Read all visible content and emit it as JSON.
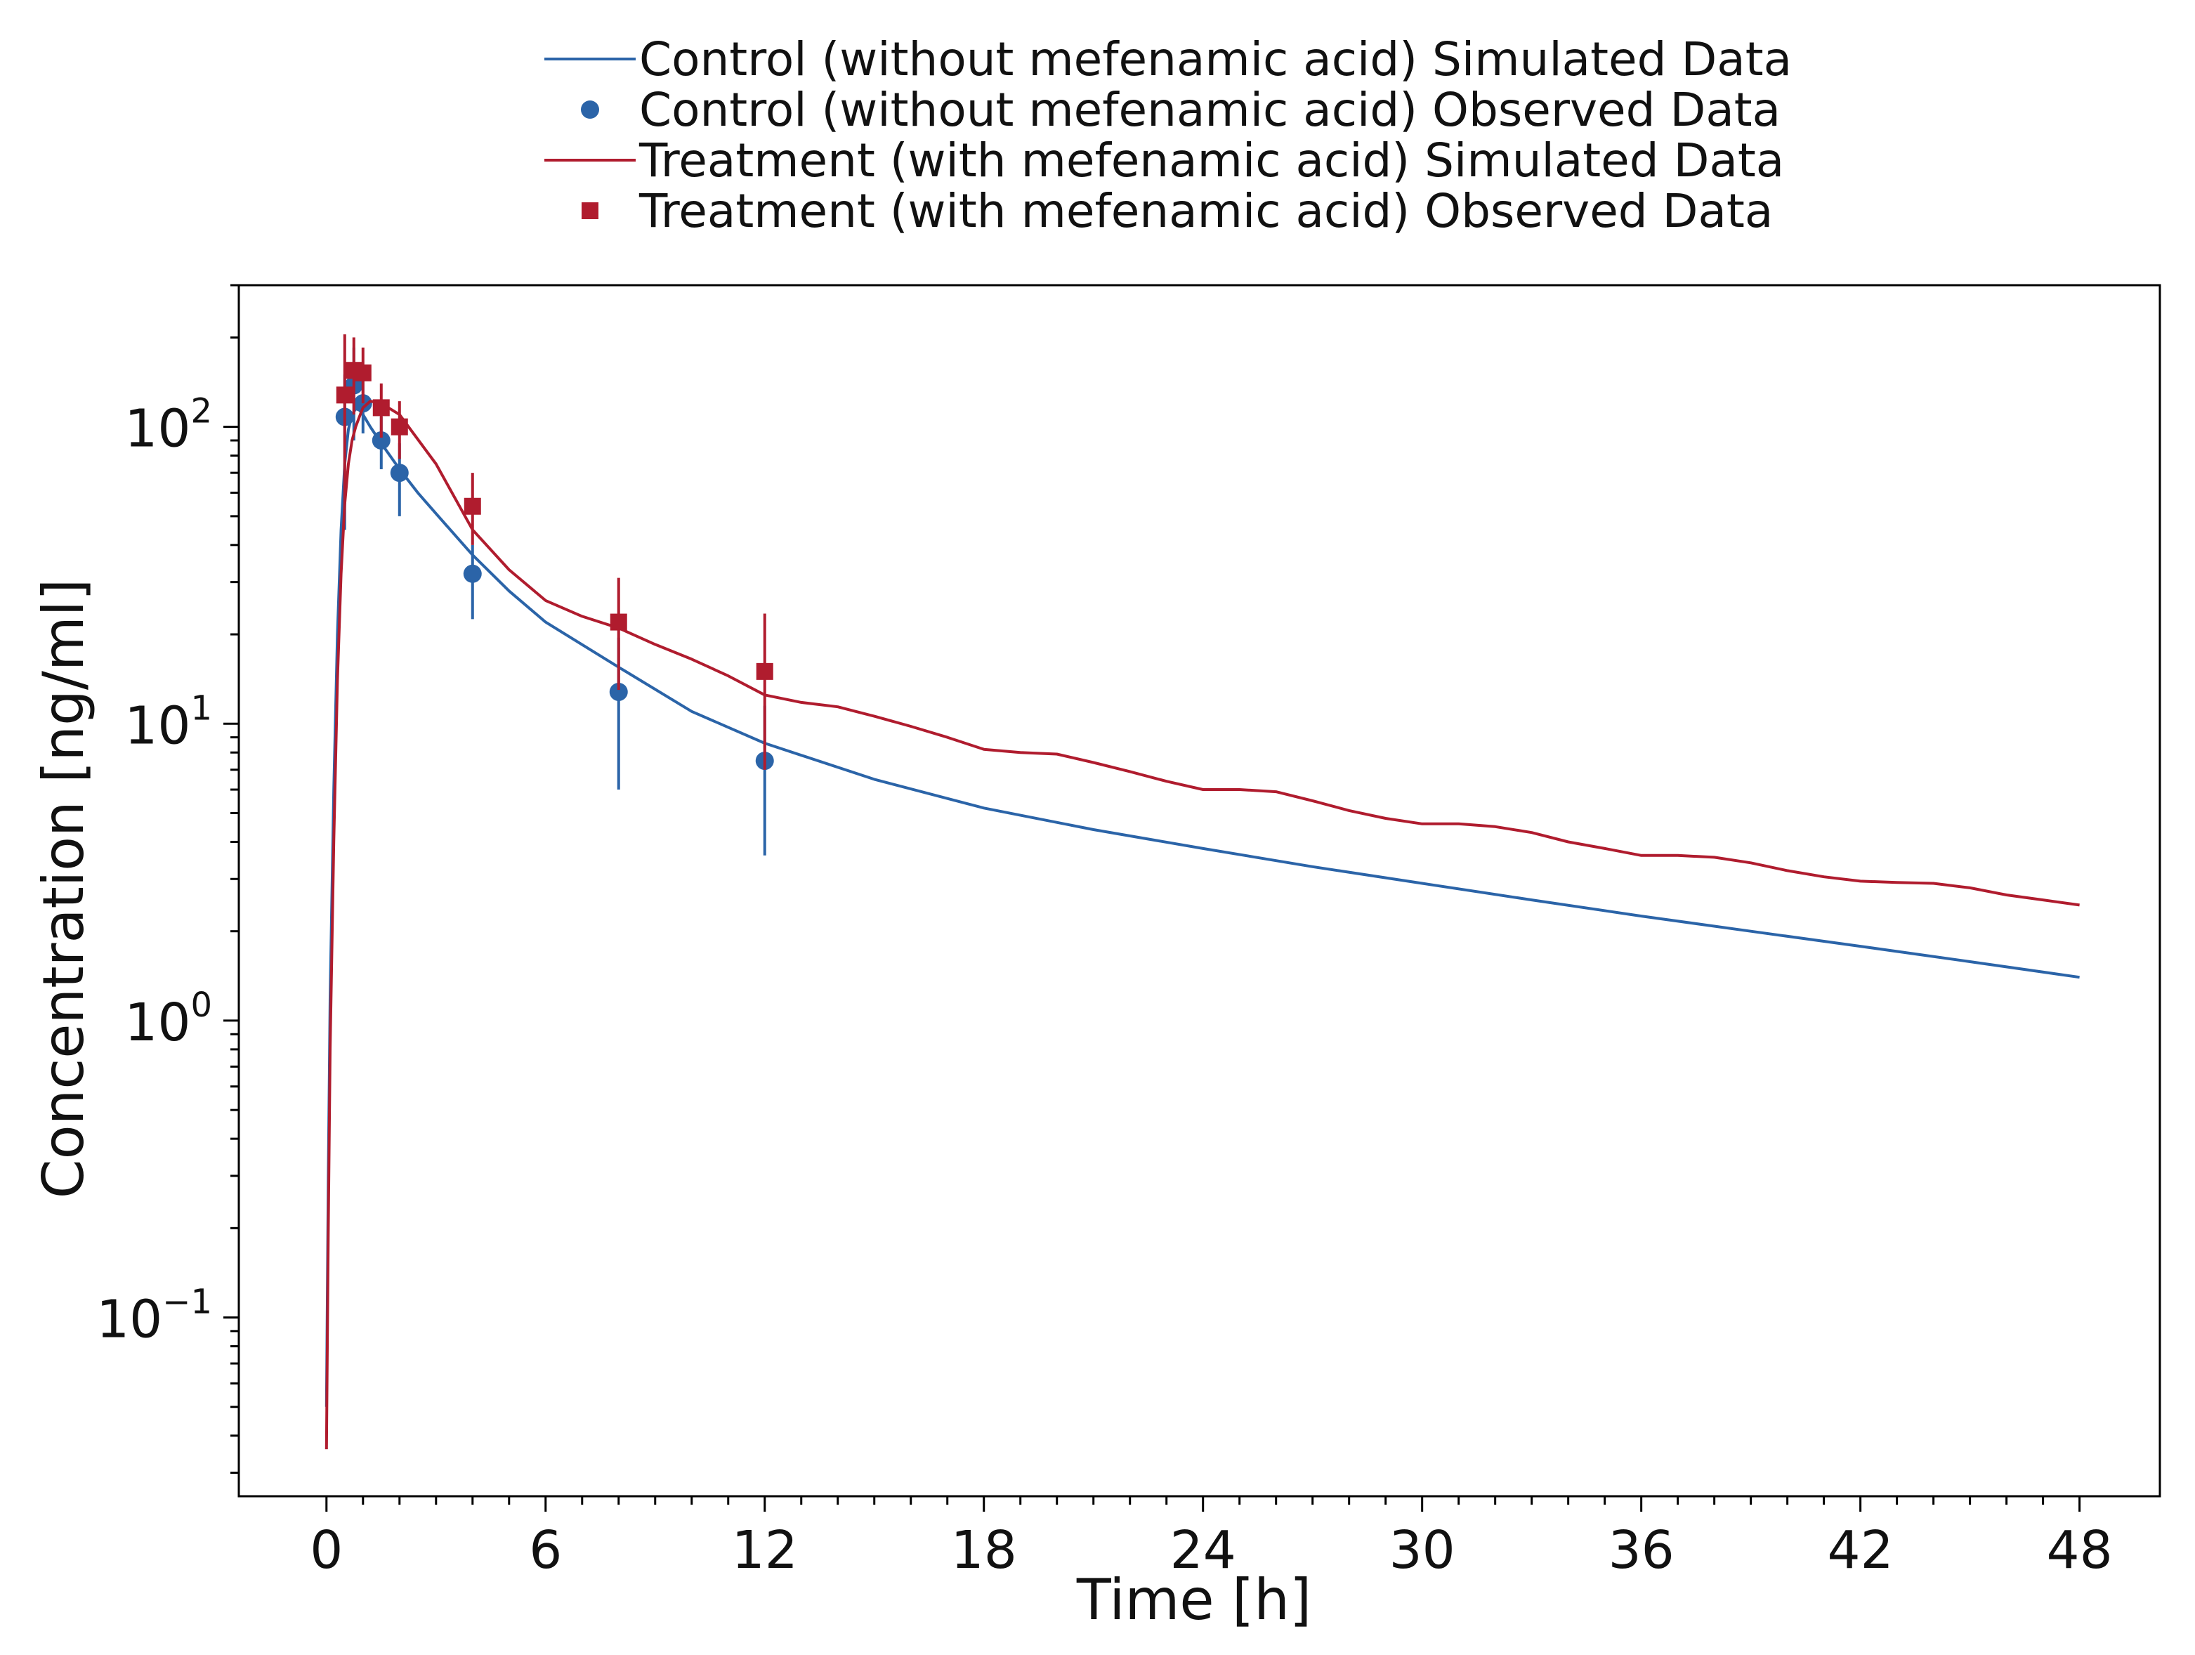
{
  "chart_data": {
    "type": "line",
    "title": "",
    "xlabel": "Time [h]",
    "ylabel": "Concentration [ng/ml]",
    "x_scale": "linear",
    "y_scale": "log",
    "xlim": [
      -2.4,
      50.2
    ],
    "ylim": [
      0.025,
      300
    ],
    "x_ticks": [
      0,
      6,
      12,
      18,
      24,
      30,
      36,
      42,
      48
    ],
    "x_tick_labels": [
      "0",
      "6",
      "12",
      "18",
      "24",
      "30",
      "36",
      "42",
      "48"
    ],
    "y_ticks": [
      0.1,
      1,
      10,
      100
    ],
    "y_tick_labels": [
      {
        "base": "10",
        "exp": "−1"
      },
      {
        "base": "10",
        "exp": "0"
      },
      {
        "base": "10",
        "exp": "1"
      },
      {
        "base": "10",
        "exp": "2"
      }
    ],
    "grid": false,
    "legend_position": "top-center",
    "series": [
      {
        "name": "Control (without mefenamic acid) Simulated Data",
        "kind": "line",
        "color": "#2b64a8",
        "x": [
          0,
          0.05,
          0.1,
          0.2,
          0.3,
          0.4,
          0.5,
          0.6,
          0.7,
          0.8,
          0.9,
          1.0,
          1.2,
          1.5,
          2,
          2.5,
          3,
          4,
          5,
          6,
          8,
          10,
          12,
          15,
          18,
          21,
          24,
          27,
          30,
          33,
          36,
          39,
          42,
          45,
          48
        ],
        "y": [
          0.05,
          0.3,
          1.2,
          6,
          20,
          45,
          75,
          98,
          110,
          115,
          114,
          110,
          100,
          88,
          72,
          60,
          51,
          37,
          28,
          22,
          15.5,
          11,
          8.6,
          6.5,
          5.2,
          4.4,
          3.8,
          3.3,
          2.9,
          2.55,
          2.25,
          2.0,
          1.78,
          1.58,
          1.4
        ]
      },
      {
        "name": "Control (without mefenamic acid) Observed Data",
        "kind": "scatter",
        "marker": "circle",
        "color": "#2b64a8",
        "x": [
          0.5,
          0.75,
          1,
          1.5,
          2,
          4,
          8,
          12
        ],
        "y": [
          108,
          138,
          120,
          90,
          70,
          32,
          12.8,
          7.5
        ],
        "err_low": [
          45,
          90,
          95,
          72,
          50,
          22.5,
          6,
          3.6
        ],
        "err_high": [
          150,
          185,
          145,
          108,
          88,
          40,
          19.5,
          11.5
        ]
      },
      {
        "name": "Treatment (with mefenamic acid) Simulated Data",
        "kind": "line",
        "color": "#b01c2e",
        "x": [
          0,
          0.05,
          0.1,
          0.2,
          0.3,
          0.4,
          0.5,
          0.6,
          0.7,
          0.8,
          0.9,
          1.0,
          1.2,
          1.5,
          2,
          3,
          4,
          5,
          6,
          7,
          8,
          9,
          10,
          11,
          12,
          13,
          14,
          15,
          16,
          17,
          18,
          19,
          20,
          21,
          22,
          23,
          24,
          25,
          26,
          27,
          28,
          29,
          30,
          31,
          32,
          33,
          34,
          35,
          36,
          37,
          38,
          39,
          40,
          41,
          42,
          43,
          44,
          45,
          46,
          47,
          48
        ],
        "y": [
          0.036,
          0.2,
          0.8,
          4,
          14,
          32,
          55,
          75,
          90,
          100,
          108,
          116,
          122,
          120,
          110,
          75,
          45,
          33,
          26,
          23,
          21,
          18.5,
          16.5,
          14.5,
          12.5,
          11.8,
          11.4,
          10.6,
          9.8,
          9.0,
          8.2,
          8.0,
          7.9,
          7.4,
          6.9,
          6.4,
          6.0,
          6.0,
          5.9,
          5.5,
          5.1,
          4.8,
          4.6,
          4.6,
          4.5,
          4.3,
          4.0,
          3.8,
          3.6,
          3.6,
          3.55,
          3.4,
          3.2,
          3.05,
          2.95,
          2.92,
          2.9,
          2.8,
          2.65,
          2.55,
          2.45
        ]
      },
      {
        "name": "Treatment (with mefenamic acid) Observed Data",
        "kind": "scatter",
        "marker": "square",
        "color": "#b01c2e",
        "x": [
          0.5,
          0.75,
          1,
          1.5,
          2,
          4,
          8,
          12
        ],
        "y": [
          128,
          155,
          152,
          116,
          100,
          54,
          22,
          15
        ],
        "err_low": [
          55,
          110,
          120,
          92,
          78,
          40,
          13,
          7
        ],
        "err_high": [
          205,
          200,
          185,
          140,
          122,
          70,
          31,
          23.5
        ]
      }
    ]
  }
}
